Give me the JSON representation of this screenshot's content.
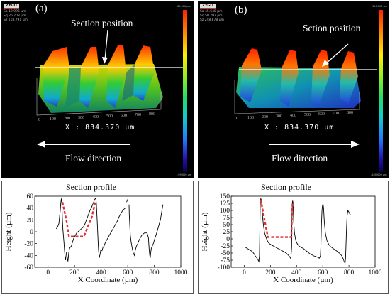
{
  "figure": {
    "a": {
      "panel_label": "(a)",
      "brand": "ZYGO",
      "stats": [
        "Sa 19.996 µm",
        "Sq 26.708 µm",
        "Sz 118.791 µm"
      ],
      "colorbar_top": "60.000 µm",
      "colorbar_bottom": "-99.000 µm",
      "annotation": "Section position",
      "x_measure": "X : 834.370 µm",
      "flow_label": "Flow direction",
      "flow_arrow": "left"
    },
    "b": {
      "panel_label": "(b)",
      "brand": "ZYGO",
      "stats": [
        "Sa 45.640 µm",
        "Sq 50.797 µm",
        "Sz 248.878 µm"
      ],
      "colorbar_top": "150.000 µm",
      "colorbar_bottom": "-100.000 µm",
      "annotation": "Sction position",
      "x_measure": "X : 834.370 µm",
      "flow_label": "Flow direction",
      "flow_arrow": "right"
    },
    "axis_ticks_3d": [
      "0",
      "100",
      "200",
      "300",
      "400",
      "500",
      "600",
      "700",
      "800"
    ]
  },
  "chart_data": [
    {
      "type": "line",
      "title": "Section profile",
      "xlabel": "X Coordinate (µm)",
      "ylabel": "Height (µm)",
      "xlim": [
        -100,
        1000
      ],
      "ylim": [
        -60,
        60
      ],
      "xticks": [
        0,
        200,
        400,
        600,
        800,
        1000
      ],
      "yticks": [
        -60,
        -40,
        -20,
        0,
        20,
        40,
        60
      ],
      "series": [
        {
          "color": "#000000",
          "style": "solid",
          "segments": [
            [
              [
                62,
                5
              ],
              [
                72,
                8
              ],
              [
                82,
                14
              ],
              [
                88,
                28
              ],
              [
                92,
                36
              ],
              [
                96,
                48
              ],
              [
                100,
                56
              ],
              [
                104,
                50
              ],
              [
                106,
                36
              ],
              [
                108,
                20
              ],
              [
                112,
                4
              ],
              [
                116,
                -8
              ],
              [
                120,
                -18
              ],
              [
                124,
                -30
              ],
              [
                128,
                -42
              ],
              [
                132,
                -48
              ],
              [
                136,
                -40
              ],
              [
                140,
                -34
              ],
              [
                146,
                -46
              ],
              [
                150,
                -50
              ],
              [
                156,
                -36
              ],
              [
                162,
                -28
              ],
              [
                168,
                -26
              ],
              [
                176,
                -24
              ],
              [
                186,
                -16
              ],
              [
                196,
                -10
              ],
              [
                206,
                -6
              ],
              [
                216,
                -2
              ],
              [
                226,
                0
              ],
              [
                236,
                2
              ],
              [
                246,
                4
              ],
              [
                256,
                6
              ],
              [
                266,
                8
              ],
              [
                276,
                12
              ],
              [
                286,
                18
              ],
              [
                296,
                24
              ],
              [
                306,
                30
              ],
              [
                316,
                36
              ],
              [
                326,
                40
              ],
              [
                336,
                46
              ],
              [
                344,
                50
              ],
              [
                350,
                54
              ],
              [
                356,
                56
              ],
              [
                360,
                56
              ],
              [
                364,
                48
              ],
              [
                368,
                30
              ],
              [
                372,
                10
              ],
              [
                376,
                -10
              ],
              [
                380,
                -30
              ],
              [
                386,
                -44
              ],
              [
                392,
                -38
              ],
              [
                398,
                -30
              ],
              [
                406,
                -32
              ],
              [
                414,
                -26
              ],
              [
                422,
                -24
              ],
              [
                432,
                -18
              ],
              [
                442,
                -14
              ],
              [
                452,
                -10
              ],
              [
                462,
                -6
              ],
              [
                472,
                -2
              ],
              [
                482,
                2
              ],
              [
                492,
                6
              ],
              [
                502,
                10
              ],
              [
                512,
                14
              ],
              [
                522,
                18
              ],
              [
                532,
                24
              ],
              [
                542,
                28
              ],
              [
                552,
                32
              ],
              [
                562,
                36
              ],
              [
                572,
                38
              ],
              [
                582,
                40
              ]
            ],
            [
              [
                592,
                50
              ],
              [
                598,
                54
              ],
              [
                604,
                54
              ]
            ],
            [
              [
                610,
                46
              ],
              [
                612,
                30
              ],
              [
                616,
                10
              ],
              [
                620,
                -6
              ],
              [
                626,
                -18
              ],
              [
                634,
                -28
              ],
              [
                642,
                -36
              ],
              [
                650,
                -40
              ],
              [
                658,
                -30
              ],
              [
                666,
                -24
              ],
              [
                676,
                -20
              ],
              [
                686,
                -14
              ],
              [
                696,
                -10
              ],
              [
                706,
                -6
              ],
              [
                716,
                -4
              ],
              [
                726,
                -2
              ],
              [
                736,
                -2
              ],
              [
                746,
                -2
              ],
              [
                756,
                -10
              ],
              [
                762,
                -30
              ],
              [
                766,
                -40
              ],
              [
                770,
                -44
              ],
              [
                774,
                -34
              ],
              [
                778,
                -28
              ],
              [
                786,
                -24
              ],
              [
                796,
                -18
              ],
              [
                806,
                -10
              ],
              [
                816,
                -4
              ],
              [
                826,
                4
              ],
              [
                836,
                12
              ],
              [
                846,
                20
              ],
              [
                852,
                28
              ],
              [
                858,
                36
              ],
              [
                862,
                42
              ],
              [
                866,
                46
              ]
            ]
          ]
        },
        {
          "color": "#e03030",
          "style": "dashed",
          "segments": [
            [
              [
                108,
                50
              ],
              [
                138,
                20
              ],
              [
                158,
                -8
              ],
              [
                270,
                -8
              ],
              [
                330,
                25
              ],
              [
                358,
                52
              ]
            ]
          ]
        }
      ]
    },
    {
      "type": "line",
      "title": "Section profile",
      "xlabel": "X Coordinate (µm)",
      "ylabel": "Height (µm)",
      "xlim": [
        -100,
        1000
      ],
      "ylim": [
        -100,
        150
      ],
      "xticks": [
        0,
        200,
        400,
        600,
        800,
        1000
      ],
      "yticks": [
        -100,
        -75,
        -50,
        -25,
        0,
        25,
        50,
        75,
        100,
        125,
        150
      ],
      "series": [
        {
          "color": "#000000",
          "style": "solid",
          "segments": [
            [
              [
                10,
                -30
              ],
              [
                24,
                -34
              ],
              [
                38,
                -38
              ],
              [
                52,
                -42
              ],
              [
                64,
                -46
              ],
              [
                74,
                -52
              ],
              [
                84,
                -60
              ],
              [
                94,
                -66
              ],
              [
                104,
                -72
              ],
              [
                112,
                -80
              ],
              [
                116,
                -60
              ],
              [
                118,
                -10
              ],
              [
                120,
                60
              ],
              [
                122,
                120
              ],
              [
                126,
                142
              ],
              [
                130,
                138
              ],
              [
                134,
                120
              ],
              [
                138,
                90
              ],
              [
                146,
                50
              ],
              [
                156,
                20
              ],
              [
                166,
                6
              ],
              [
                176,
                -6
              ],
              [
                186,
                -14
              ],
              [
                196,
                -18
              ],
              [
                210,
                -22
              ],
              [
                226,
                -26
              ],
              [
                242,
                -30
              ],
              [
                258,
                -34
              ],
              [
                274,
                -38
              ],
              [
                290,
                -42
              ],
              [
                306,
                -46
              ],
              [
                320,
                -50
              ],
              [
                334,
                -56
              ],
              [
                346,
                -62
              ],
              [
                356,
                -70
              ],
              [
                362,
                -30
              ],
              [
                364,
                40
              ],
              [
                366,
                100
              ],
              [
                368,
                130
              ],
              [
                370,
                134
              ],
              [
                372,
                130
              ],
              [
                374,
                110
              ],
              [
                378,
                60
              ],
              [
                384,
                20
              ],
              [
                394,
                -6
              ],
              [
                406,
                -18
              ],
              [
                420,
                -26
              ],
              [
                436,
                -30
              ],
              [
                452,
                -34
              ],
              [
                468,
                -40
              ],
              [
                484,
                -46
              ],
              [
                500,
                -52
              ],
              [
                516,
                -56
              ],
              [
                532,
                -60
              ],
              [
                546,
                -62
              ],
              [
                556,
                -64
              ],
              [
                566,
                -66
              ],
              [
                574,
                -68
              ],
              [
                582,
                -60
              ],
              [
                586,
                -20
              ],
              [
                590,
                50
              ],
              [
                594,
                100
              ],
              [
                598,
                118
              ],
              [
                602,
                122
              ],
              [
                606,
                110
              ],
              [
                612,
                60
              ],
              [
                620,
                20
              ],
              [
                632,
                -6
              ],
              [
                646,
                -20
              ],
              [
                662,
                -28
              ],
              [
                680,
                -34
              ],
              [
                698,
                -40
              ],
              [
                716,
                -46
              ],
              [
                732,
                -52
              ],
              [
                746,
                -60
              ],
              [
                756,
                -70
              ],
              [
                764,
                -80
              ],
              [
                770,
                -86
              ],
              [
                774,
                -70
              ],
              [
                778,
                -20
              ],
              [
                782,
                40
              ],
              [
                786,
                80
              ],
              [
                792,
                100
              ],
              [
                798,
                96
              ],
              [
                806,
                88
              ],
              [
                812,
                86
              ]
            ]
          ]
        },
        {
          "color": "#e03030",
          "style": "dashed",
          "segments": [
            [
              [
                126,
                138
              ],
              [
                150,
                80
              ],
              [
                180,
                6
              ],
              [
                360,
                6
              ],
              [
                364,
                70
              ],
              [
                370,
                130
              ]
            ]
          ]
        }
      ]
    }
  ]
}
